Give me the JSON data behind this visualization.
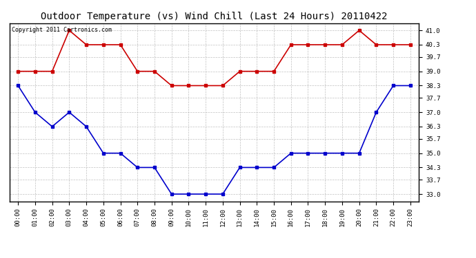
{
  "title": "Outdoor Temperature (vs) Wind Chill (Last 24 Hours) 20110422",
  "copyright_text": "Copyright 2011 Cartronics.com",
  "hours": [
    "00:00",
    "01:00",
    "02:00",
    "03:00",
    "04:00",
    "05:00",
    "06:00",
    "07:00",
    "08:00",
    "09:00",
    "10:00",
    "11:00",
    "12:00",
    "13:00",
    "14:00",
    "15:00",
    "16:00",
    "17:00",
    "18:00",
    "19:00",
    "20:00",
    "21:00",
    "22:00",
    "23:00"
  ],
  "temp_red": [
    39.0,
    39.0,
    39.0,
    41.0,
    40.3,
    40.3,
    40.3,
    39.0,
    39.0,
    38.3,
    38.3,
    38.3,
    38.3,
    39.0,
    39.0,
    39.0,
    40.3,
    40.3,
    40.3,
    40.3,
    41.0,
    40.3,
    40.3,
    40.3
  ],
  "temp_blue": [
    38.3,
    37.0,
    36.3,
    37.0,
    36.3,
    35.0,
    35.0,
    34.3,
    34.3,
    33.0,
    33.0,
    33.0,
    33.0,
    34.3,
    34.3,
    34.3,
    35.0,
    35.0,
    35.0,
    35.0,
    35.0,
    37.0,
    38.3,
    38.3
  ],
  "ylim": [
    32.65,
    41.35
  ],
  "yticks": [
    33.0,
    33.7,
    34.3,
    35.0,
    35.7,
    36.3,
    37.0,
    37.7,
    38.3,
    39.0,
    39.7,
    40.3,
    41.0
  ],
  "red_color": "#cc0000",
  "blue_color": "#0000cc",
  "bg_color": "#ffffff",
  "grid_color": "#b0b0b0",
  "title_fontsize": 10,
  "tick_fontsize": 6.5,
  "copyright_fontsize": 6
}
